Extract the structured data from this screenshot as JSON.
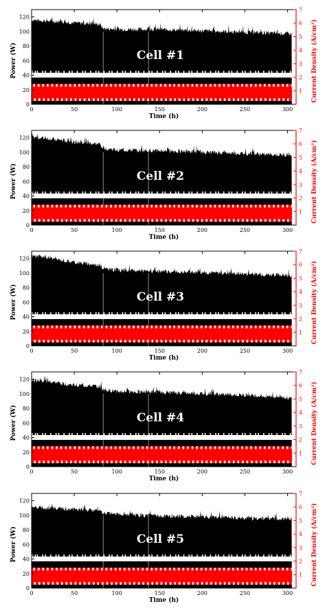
{
  "chart_data": [
    {
      "type": "bar",
      "title": "Cell #1",
      "xlabel": "Time (h)",
      "ylabel": "Power (W)",
      "ylabel_right": "Current Density (A/cm²)",
      "xlim": [
        0,
        310
      ],
      "ylim": [
        0,
        130
      ],
      "ylim_right": [
        0,
        7
      ],
      "x_ticks": [
        "0",
        "50",
        "100",
        "150",
        "200",
        "250",
        "300"
      ],
      "y_ticks": [
        "0",
        "20",
        "40",
        "60",
        "80",
        "100",
        "120"
      ],
      "y_ticks_right": [
        "1",
        "2",
        "3",
        "4",
        "5",
        "6",
        "7"
      ],
      "grid": false,
      "series": [
        {
          "name": "Power",
          "color": "#000000",
          "x": [
            0,
            25,
            50,
            80,
            84,
            100,
            150,
            200,
            250,
            300,
            305
          ],
          "y": [
            116,
            114,
            112,
            110,
            104,
            103,
            103,
            101,
            99,
            97,
            97
          ]
        },
        {
          "name": "Current Density",
          "color": "#ff0000",
          "x": [
            0,
            310
          ],
          "y": [
            1.5,
            1.5
          ],
          "low": 0.25
        }
      ]
    },
    {
      "type": "bar",
      "title": "Cell #2",
      "xlabel": "Time (h)",
      "ylabel": "Power (W)",
      "ylabel_right": "Current Density (A/cm²)",
      "xlim": [
        0,
        310
      ],
      "ylim": [
        0,
        130
      ],
      "ylim_right": [
        0,
        7
      ],
      "x_ticks": [
        "0",
        "50",
        "100",
        "150",
        "200",
        "250",
        "300"
      ],
      "y_ticks": [
        "0",
        "20",
        "40",
        "60",
        "80",
        "100",
        "120"
      ],
      "y_ticks_right": [
        "1",
        "2",
        "3",
        "4",
        "5",
        "6",
        "7"
      ],
      "grid": false,
      "series": [
        {
          "name": "Power",
          "color": "#000000",
          "x": [
            0,
            25,
            50,
            80,
            84,
            100,
            150,
            200,
            250,
            300,
            305
          ],
          "y": [
            121,
            118,
            114,
            111,
            106,
            103,
            102,
            100,
            98,
            96,
            96
          ]
        },
        {
          "name": "Current Density",
          "color": "#ff0000",
          "x": [
            0,
            310
          ],
          "y": [
            1.5,
            1.5
          ],
          "low": 0.25
        }
      ]
    },
    {
      "type": "bar",
      "title": "Cell #3",
      "xlabel": "Time (h)",
      "ylabel": "Power (W)",
      "ylabel_right": "Current Density (A/cm²)",
      "xlim": [
        0,
        310
      ],
      "ylim": [
        0,
        130
      ],
      "ylim_right": [
        0,
        7
      ],
      "x_ticks": [
        "0",
        "50",
        "100",
        "150",
        "200",
        "250",
        "300"
      ],
      "y_ticks": [
        "0",
        "20",
        "40",
        "60",
        "80",
        "100",
        "120"
      ],
      "y_ticks_right": [
        "1",
        "2",
        "3",
        "4",
        "5",
        "6",
        "7"
      ],
      "grid": false,
      "series": [
        {
          "name": "Power",
          "color": "#000000",
          "x": [
            0,
            25,
            50,
            80,
            84,
            100,
            150,
            200,
            250,
            300,
            305
          ],
          "y": [
            124,
            120,
            115,
            111,
            106,
            104,
            102,
            101,
            99,
            97,
            97
          ]
        },
        {
          "name": "Current Density",
          "color": "#ff0000",
          "x": [
            0,
            310
          ],
          "y": [
            1.5,
            1.5
          ],
          "low": 0.25
        }
      ]
    },
    {
      "type": "bar",
      "title": "Cell #4",
      "xlabel": "Time (h)",
      "ylabel": "Power (W)",
      "ylabel_right": "Current Density (A/cm²)",
      "xlim": [
        0,
        310
      ],
      "ylim": [
        0,
        130
      ],
      "ylim_right": [
        0,
        7
      ],
      "x_ticks": [
        "0",
        "50",
        "100",
        "150",
        "200",
        "250",
        "300"
      ],
      "y_ticks": [
        "0",
        "20",
        "40",
        "60",
        "80",
        "100",
        "120"
      ],
      "y_ticks_right": [
        "1",
        "2",
        "3",
        "4",
        "5",
        "6",
        "7"
      ],
      "grid": false,
      "series": [
        {
          "name": "Power",
          "color": "#000000",
          "x": [
            0,
            25,
            50,
            80,
            84,
            100,
            150,
            200,
            250,
            300,
            305
          ],
          "y": [
            119,
            116,
            112,
            110,
            106,
            103,
            102,
            100,
            98,
            95,
            93
          ]
        },
        {
          "name": "Current Density",
          "color": "#ff0000",
          "x": [
            0,
            310
          ],
          "y": [
            1.5,
            1.5
          ],
          "low": 0.25
        }
      ]
    },
    {
      "type": "bar",
      "title": "Cell #5",
      "xlabel": "Time (h)",
      "ylabel": "Power (W)",
      "ylabel_right": "Current Density (A/cm²)",
      "xlim": [
        0,
        310
      ],
      "ylim": [
        0,
        130
      ],
      "ylim_right": [
        0,
        7
      ],
      "x_ticks": [
        "0",
        "50",
        "100",
        "150",
        "200",
        "250",
        "300"
      ],
      "y_ticks": [
        "0",
        "20",
        "40",
        "60",
        "80",
        "100",
        "120"
      ],
      "y_ticks_right": [
        "1",
        "2",
        "3",
        "4",
        "5",
        "6",
        "7"
      ],
      "grid": false,
      "series": [
        {
          "name": "Power",
          "color": "#000000",
          "x": [
            0,
            25,
            50,
            80,
            84,
            100,
            150,
            200,
            250,
            300,
            305
          ],
          "y": [
            111,
            110,
            108,
            106,
            103,
            101,
            99,
            98,
            96,
            95,
            95
          ]
        },
        {
          "name": "Current Density",
          "color": "#ff0000",
          "x": [
            0,
            310
          ],
          "y": [
            1.5,
            1.5
          ],
          "low": 0.25
        }
      ]
    }
  ]
}
